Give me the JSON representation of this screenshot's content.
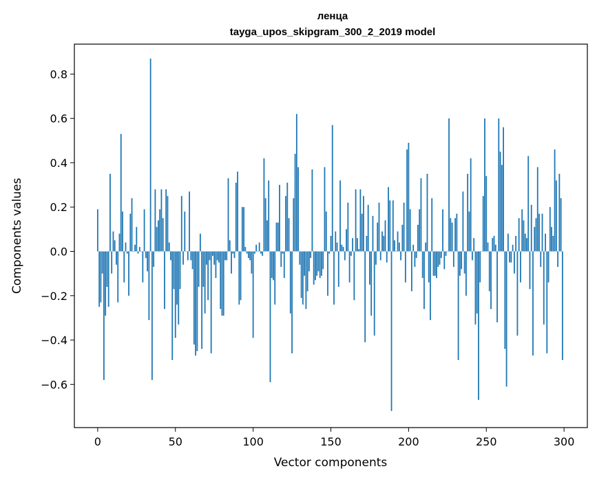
{
  "chart_data": {
    "type": "bar",
    "title_line1": "ленца",
    "title_line2": "tayga_upos_skipgram_300_2_2019 model",
    "xlabel": "Vector components",
    "ylabel": "Components values",
    "xlim": [
      -15,
      315
    ],
    "ylim": [
      -0.795,
      0.935
    ],
    "xticks": [
      0,
      50,
      100,
      150,
      200,
      250,
      300
    ],
    "yticks": [
      -0.6,
      -0.4,
      -0.2,
      0.0,
      0.2,
      0.4,
      0.6,
      0.8
    ],
    "ytick_labels": [
      "−0.6",
      "−0.4",
      "−0.2",
      "0.0",
      "0.2",
      "0.4",
      "0.6",
      "0.8"
    ],
    "bar_color": "#1f77b4",
    "values": [
      0.19,
      -0.25,
      -0.23,
      -0.1,
      -0.58,
      -0.29,
      -0.16,
      -0.25,
      0.35,
      -0.1,
      0.09,
      0.05,
      -0.06,
      -0.23,
      0.08,
      0.53,
      0.18,
      -0.14,
      0.04,
      -0.01,
      -0.2,
      0.17,
      0.24,
      0.0,
      0.03,
      0.11,
      -0.01,
      0.02,
      0.0,
      -0.14,
      0.19,
      -0.03,
      -0.09,
      -0.31,
      0.87,
      -0.58,
      -0.07,
      0.28,
      0.11,
      0.14,
      0.19,
      0.28,
      0.15,
      -0.26,
      0.28,
      0.25,
      0.04,
      -0.04,
      -0.49,
      -0.17,
      -0.39,
      -0.24,
      -0.33,
      -0.17,
      0.25,
      -0.06,
      0.18,
      0.0,
      -0.04,
      0.27,
      -0.04,
      -0.08,
      -0.42,
      -0.47,
      -0.45,
      -0.16,
      0.08,
      -0.44,
      -0.16,
      -0.28,
      -0.06,
      -0.22,
      -0.04,
      -0.46,
      -0.02,
      -0.06,
      -0.12,
      -0.04,
      -0.05,
      -0.26,
      -0.29,
      -0.29,
      -0.04,
      -0.04,
      0.33,
      0.05,
      -0.1,
      -0.01,
      -0.03,
      0.31,
      0.36,
      -0.24,
      -0.22,
      0.2,
      0.2,
      0.02,
      -0.01,
      -0.03,
      -0.04,
      -0.1,
      -0.39,
      -0.01,
      0.03,
      0.0,
      0.04,
      -0.01,
      -0.02,
      0.42,
      0.24,
      0.14,
      0.32,
      -0.59,
      -0.12,
      -0.13,
      -0.24,
      0.13,
      0.13,
      0.3,
      -0.07,
      -0.01,
      -0.12,
      0.25,
      0.31,
      0.15,
      -0.28,
      -0.46,
      0.24,
      0.44,
      0.62,
      0.38,
      -0.06,
      -0.21,
      -0.24,
      -0.11,
      -0.26,
      -0.18,
      -0.09,
      -0.03,
      0.37,
      -0.15,
      -0.13,
      -0.11,
      -0.09,
      -0.12,
      -0.11,
      -0.08,
      0.38,
      0.18,
      -0.2,
      -0.01,
      0.07,
      0.57,
      -0.24,
      0.09,
      0.04,
      -0.16,
      0.32,
      0.03,
      0.02,
      -0.04,
      0.1,
      0.22,
      -0.14,
      -0.02,
      0.06,
      -0.22,
      0.28,
      0.06,
      0.01,
      0.28,
      0.17,
      0.25,
      -0.41,
      0.07,
      0.21,
      -0.15,
      -0.29,
      0.16,
      -0.38,
      -0.06,
      0.13,
      0.22,
      -0.04,
      0.09,
      0.07,
      0.14,
      -0.05,
      0.29,
      0.23,
      -0.72,
      0.23,
      0.05,
      0.0,
      0.09,
      0.04,
      -0.04,
      0.12,
      0.22,
      -0.14,
      0.46,
      0.49,
      0.19,
      -0.18,
      0.03,
      -0.07,
      -0.03,
      0.12,
      0.19,
      0.33,
      -0.12,
      -0.26,
      0.04,
      0.35,
      -0.14,
      -0.31,
      0.24,
      -0.11,
      -0.11,
      -0.12,
      -0.07,
      -0.06,
      -0.03,
      0.19,
      -0.08,
      -0.02,
      0.0,
      0.6,
      0.15,
      0.13,
      -0.07,
      0.15,
      0.17,
      -0.49,
      -0.11,
      -0.08,
      0.27,
      -0.1,
      -0.2,
      0.35,
      0.18,
      0.42,
      -0.04,
      0.06,
      -0.33,
      -0.28,
      -0.67,
      -0.14,
      0.0,
      0.25,
      0.6,
      0.34,
      0.04,
      -0.18,
      -0.26,
      0.06,
      0.07,
      0.03,
      -0.32,
      0.6,
      0.45,
      0.39,
      0.56,
      -0.44,
      -0.61,
      0.08,
      -0.05,
      -0.05,
      0.03,
      -0.1,
      0.07,
      -0.38,
      0.15,
      -0.14,
      0.19,
      0.14,
      0.08,
      0.06,
      0.43,
      -0.17,
      0.21,
      -0.47,
      0.11,
      0.15,
      0.38,
      0.17,
      -0.07,
      0.17,
      -0.33,
      0.08,
      -0.46,
      -0.14,
      0.2,
      0.11,
      0.07,
      0.46,
      0.32,
      -0.07,
      0.35,
      0.24,
      -0.49
    ]
  }
}
